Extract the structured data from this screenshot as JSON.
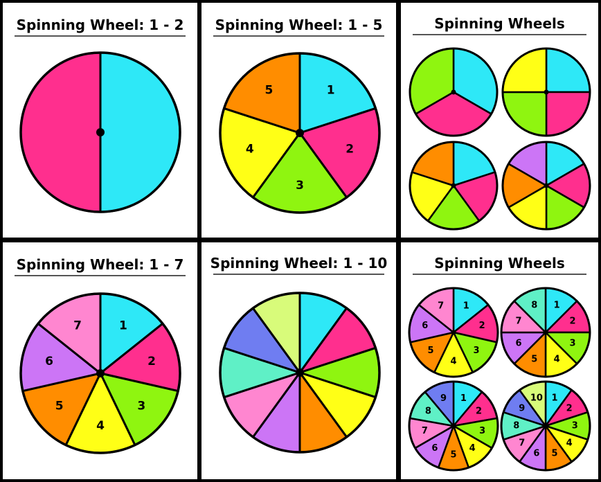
{
  "colors": {
    "cyan": "#2ee8f7",
    "pink": "#ff2f8e",
    "green": "#8ff510",
    "yellow": "#ffff16",
    "orange": "#ff8d00",
    "purple": "#cc75f6",
    "lightpink": "#ff86d0",
    "lime": "#d8fb7a",
    "periwinkle": "#6f7df1",
    "aqua": "#5ff0c6",
    "border": "#000000"
  },
  "panels": [
    {
      "title": "Spinning Wheel: 1 - 2",
      "wheels": [
        {
          "colors": [
            "cyan",
            "pink"
          ],
          "labels": []
        }
      ]
    },
    {
      "title": "Spinning Wheel: 1 - 5",
      "wheels": [
        {
          "colors": [
            "cyan",
            "pink",
            "green",
            "yellow",
            "orange"
          ],
          "labels": [
            "1",
            "2",
            "3",
            "4",
            "5"
          ]
        }
      ]
    },
    {
      "title": "Spinning Wheels",
      "wheels": [
        {
          "colors": [
            "cyan",
            "pink",
            "green"
          ],
          "labels": []
        },
        {
          "colors": [
            "cyan",
            "pink",
            "green",
            "yellow"
          ],
          "labels": []
        },
        {
          "colors": [
            "cyan",
            "pink",
            "green",
            "yellow",
            "orange"
          ],
          "labels": []
        },
        {
          "colors": [
            "cyan",
            "pink",
            "green",
            "yellow",
            "orange",
            "purple"
          ],
          "labels": []
        }
      ]
    },
    {
      "title": "Spinning Wheel: 1 - 7",
      "wheels": [
        {
          "colors": [
            "cyan",
            "pink",
            "green",
            "yellow",
            "orange",
            "purple",
            "lightpink"
          ],
          "labels": [
            "1",
            "2",
            "3",
            "4",
            "5",
            "6",
            "7"
          ]
        }
      ]
    },
    {
      "title": "Spinning Wheel: 1 - 10",
      "wheels": [
        {
          "colors": [
            "cyan",
            "pink",
            "green",
            "yellow",
            "orange",
            "purple",
            "lightpink",
            "aqua",
            "periwinkle",
            "lime"
          ],
          "labels": []
        }
      ]
    },
    {
      "title": "Spinning Wheels",
      "wheels": [
        {
          "colors": [
            "cyan",
            "pink",
            "green",
            "yellow",
            "orange",
            "purple",
            "lightpink"
          ],
          "labels": [
            "1",
            "2",
            "3",
            "4",
            "5",
            "6",
            "7"
          ]
        },
        {
          "colors": [
            "cyan",
            "pink",
            "green",
            "yellow",
            "orange",
            "purple",
            "lightpink",
            "aqua"
          ],
          "labels": [
            "1",
            "2",
            "3",
            "4",
            "5",
            "6",
            "7",
            "8"
          ]
        },
        {
          "colors": [
            "cyan",
            "pink",
            "green",
            "yellow",
            "orange",
            "purple",
            "lightpink",
            "aqua",
            "periwinkle"
          ],
          "labels": [
            "1",
            "2",
            "3",
            "4",
            "5",
            "6",
            "7",
            "8",
            "9"
          ]
        },
        {
          "colors": [
            "cyan",
            "pink",
            "green",
            "yellow",
            "orange",
            "purple",
            "lightpink",
            "aqua",
            "periwinkle",
            "lime"
          ],
          "labels": [
            "1",
            "2",
            "3",
            "4",
            "5",
            "6",
            "7",
            "8",
            "9",
            "10"
          ]
        }
      ]
    }
  ]
}
